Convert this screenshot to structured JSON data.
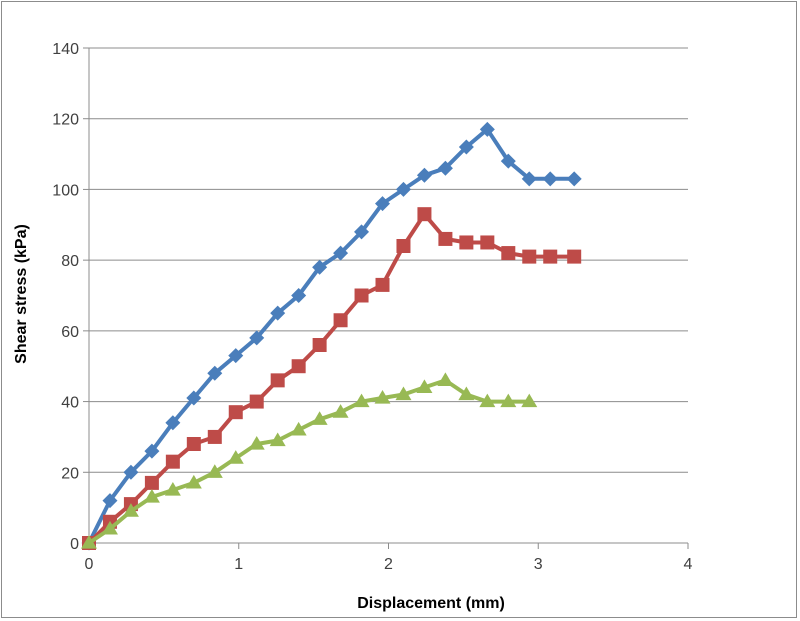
{
  "chart_data": {
    "type": "line",
    "title": "",
    "xlabel": "Displacement (mm)",
    "ylabel": "Shear stress (kPa)",
    "xlim": [
      0,
      4
    ],
    "ylim": [
      0,
      140
    ],
    "x_ticks": [
      0,
      1,
      2,
      3,
      4
    ],
    "y_ticks": [
      0,
      20,
      40,
      60,
      80,
      100,
      120,
      140
    ],
    "grid": "horizontal",
    "legend": "none",
    "series": [
      {
        "color": "#4a7ebb",
        "marker": "diamond",
        "x": [
          0,
          0.14,
          0.28,
          0.42,
          0.56,
          0.7,
          0.84,
          0.98,
          1.12,
          1.26,
          1.4,
          1.54,
          1.68,
          1.82,
          1.96,
          2.1,
          2.24,
          2.38,
          2.52,
          2.66,
          2.8,
          2.94,
          3.08,
          3.24
        ],
        "y": [
          0,
          12,
          20,
          26,
          34,
          41,
          48,
          53,
          58,
          65,
          70,
          78,
          82,
          88,
          96,
          100,
          104,
          106,
          112,
          117,
          108,
          103,
          103,
          103
        ]
      },
      {
        "color": "#be4b48",
        "marker": "square",
        "x": [
          0,
          0.14,
          0.28,
          0.42,
          0.56,
          0.7,
          0.84,
          0.98,
          1.12,
          1.26,
          1.4,
          1.54,
          1.68,
          1.82,
          1.96,
          2.1,
          2.24,
          2.38,
          2.52,
          2.66,
          2.8,
          2.94,
          3.08,
          3.24
        ],
        "y": [
          0,
          6,
          11,
          17,
          23,
          28,
          30,
          37,
          40,
          46,
          50,
          56,
          63,
          70,
          73,
          84,
          93,
          86,
          85,
          85,
          82,
          81,
          81,
          81
        ]
      },
      {
        "color": "#98b954",
        "marker": "triangle",
        "x": [
          0,
          0.14,
          0.28,
          0.42,
          0.56,
          0.7,
          0.84,
          0.98,
          1.12,
          1.26,
          1.4,
          1.54,
          1.68,
          1.82,
          1.96,
          2.1,
          2.24,
          2.38,
          2.52,
          2.66,
          2.8,
          2.94
        ],
        "y": [
          0,
          4,
          9,
          13,
          15,
          17,
          20,
          24,
          28,
          29,
          32,
          35,
          37,
          40,
          41,
          42,
          44,
          46,
          42,
          40,
          40,
          40
        ]
      }
    ]
  }
}
